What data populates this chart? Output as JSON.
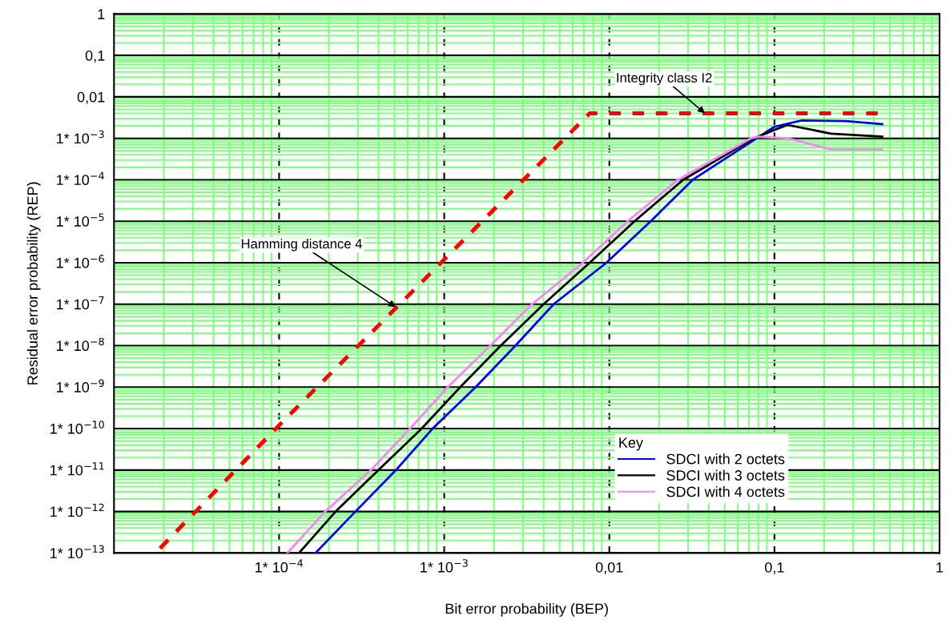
{
  "chart_data": {
    "type": "line",
    "xlabel": "Bit error probability (BEP)",
    "ylabel": "Residual error probability (REP)",
    "legend_title": "Key",
    "legend": "bottom right",
    "log": "xy",
    "grid": true,
    "xlim": [
      1e-05,
      1
    ],
    "ylim": [
      1e-13,
      1
    ],
    "xticks": [
      {
        "value": 2e-05,
        "label": null
      },
      {
        "value": 3e-05,
        "label": null
      },
      {
        "value": 4e-05,
        "label": null
      },
      {
        "value": 5e-05,
        "label": null
      },
      {
        "value": 6e-05,
        "label": null
      },
      {
        "value": 7e-05,
        "label": null
      },
      {
        "value": 8e-05,
        "label": null
      },
      {
        "value": 9e-05,
        "label": null
      },
      {
        "value": 0.0002,
        "label": null
      },
      {
        "value": 0.0003,
        "label": null
      },
      {
        "value": 0.0004,
        "label": null
      },
      {
        "value": 0.0005,
        "label": null
      },
      {
        "value": 0.0006,
        "label": null
      },
      {
        "value": 0.0007,
        "label": null
      },
      {
        "value": 0.0008,
        "label": null
      },
      {
        "value": 0.0009,
        "label": null
      },
      {
        "value": 0.002,
        "label": null
      },
      {
        "value": 0.003,
        "label": null
      },
      {
        "value": 0.004,
        "label": null
      },
      {
        "value": 0.005,
        "label": null
      },
      {
        "value": 0.006,
        "label": null
      },
      {
        "value": 0.007,
        "label": null
      },
      {
        "value": 0.008,
        "label": null
      },
      {
        "value": 0.009,
        "label": null
      },
      {
        "value": 0.02,
        "label": null
      },
      {
        "value": 0.03,
        "label": null
      },
      {
        "value": 0.04,
        "label": null
      },
      {
        "value": 0.05,
        "label": null
      },
      {
        "value": 0.06,
        "label": null
      },
      {
        "value": 0.07,
        "label": null
      },
      {
        "value": 0.08,
        "label": null
      },
      {
        "value": 0.09,
        "label": null
      },
      {
        "value": 0.2,
        "label": null
      },
      {
        "value": 0.3,
        "label": null
      },
      {
        "value": 0.4,
        "label": null
      },
      {
        "value": 0.5,
        "label": null
      },
      {
        "value": 0.6,
        "label": null
      },
      {
        "value": 0.7,
        "label": null
      },
      {
        "value": 0.8,
        "label": null
      },
      {
        "value": 0.9,
        "label": null
      },
      {
        "value": 0.0001,
        "label": "1* 10$^{−4}$"
      },
      {
        "value": 0.001,
        "label": "1* 10$^{−3}$"
      },
      {
        "value": 0.01,
        "label": "0,01"
      },
      {
        "value": 0.1,
        "label": "0,1"
      },
      {
        "value": 1,
        "label": "1"
      }
    ],
    "yticks": [
      {
        "value": 1,
        "label": "1"
      },
      {
        "value": 0.1,
        "label": "0,1"
      },
      {
        "value": 0.01,
        "label": "0,01"
      },
      {
        "value": 0.001,
        "label": "1* 10$^{−3}$"
      },
      {
        "value": 0.0001,
        "label": "1* 10$^{−4}$"
      },
      {
        "value": 1e-05,
        "label": "1* 10$^{−5}$"
      },
      {
        "value": 1e-06,
        "label": "1* 10$^{−6}$"
      },
      {
        "value": 1e-07,
        "label": "1* 10$^{−7}$"
      },
      {
        "value": 1e-08,
        "label": "1* 10$^{−8}$"
      },
      {
        "value": 1e-09,
        "label": "1* 10$^{−9}$"
      },
      {
        "value": 1e-10,
        "label": "1* 10$^{−10}$"
      },
      {
        "value": 1e-11,
        "label": "1* 10$^{−11}$"
      },
      {
        "value": 1e-12,
        "label": "1* 10$^{−12}$"
      },
      {
        "value": 1e-13,
        "label": "1* 10$^{−13}$"
      },
      {
        "value": 2e-13,
        "label": null
      },
      {
        "value": 3e-13,
        "label": null
      },
      {
        "value": 4e-13,
        "label": null
      },
      {
        "value": 5e-13,
        "label": null
      },
      {
        "value": 6e-13,
        "label": null
      },
      {
        "value": 7e-13,
        "label": null
      },
      {
        "value": 8e-13,
        "label": null
      },
      {
        "value": 9e-13,
        "label": null
      },
      {
        "value": 2e-12,
        "label": null
      },
      {
        "value": 3e-12,
        "label": null
      },
      {
        "value": 4e-12,
        "label": null
      },
      {
        "value": 5e-12,
        "label": null
      },
      {
        "value": 6e-12,
        "label": null
      },
      {
        "value": 7e-12,
        "label": null
      },
      {
        "value": 8e-12,
        "label": null
      },
      {
        "value": 9e-12,
        "label": null
      },
      {
        "value": 2e-11,
        "label": null
      },
      {
        "value": 3e-11,
        "label": null
      },
      {
        "value": 4e-11,
        "label": null
      },
      {
        "value": 5e-11,
        "label": null
      },
      {
        "value": 6e-11,
        "label": null
      },
      {
        "value": 7e-11,
        "label": null
      },
      {
        "value": 8e-11,
        "label": null
      },
      {
        "value": 9e-11,
        "label": null
      },
      {
        "value": 2e-10,
        "label": null
      },
      {
        "value": 3e-10,
        "label": null
      },
      {
        "value": 4e-10,
        "label": null
      },
      {
        "value": 5e-10,
        "label": null
      },
      {
        "value": 6e-10,
        "label": null
      },
      {
        "value": 7e-10,
        "label": null
      },
      {
        "value": 8e-10,
        "label": null
      },
      {
        "value": 9e-10,
        "label": null
      },
      {
        "value": 2e-09,
        "label": null
      },
      {
        "value": 3e-09,
        "label": null
      },
      {
        "value": 4e-09,
        "label": null
      },
      {
        "value": 5e-09,
        "label": null
      },
      {
        "value": 6e-09,
        "label": null
      },
      {
        "value": 7e-09,
        "label": null
      },
      {
        "value": 8e-09,
        "label": null
      },
      {
        "value": 9e-09,
        "label": null
      },
      {
        "value": 2e-08,
        "label": null
      },
      {
        "value": 3e-08,
        "label": null
      },
      {
        "value": 4e-08,
        "label": null
      },
      {
        "value": 5e-08,
        "label": null
      },
      {
        "value": 6e-08,
        "label": null
      },
      {
        "value": 7e-08,
        "label": null
      },
      {
        "value": 8e-08,
        "label": null
      },
      {
        "value": 9e-08,
        "label": null
      },
      {
        "value": 2e-07,
        "label": null
      },
      {
        "value": 3e-07,
        "label": null
      },
      {
        "value": 4e-07,
        "label": null
      },
      {
        "value": 5e-07,
        "label": null
      },
      {
        "value": 6e-07,
        "label": null
      },
      {
        "value": 7e-07,
        "label": null
      },
      {
        "value": 8e-07,
        "label": null
      },
      {
        "value": 9e-07,
        "label": null
      },
      {
        "value": 2e-06,
        "label": null
      },
      {
        "value": 3e-06,
        "label": null
      },
      {
        "value": 4e-06,
        "label": null
      },
      {
        "value": 5e-06,
        "label": null
      },
      {
        "value": 6e-06,
        "label": null
      },
      {
        "value": 7e-06,
        "label": null
      },
      {
        "value": 8e-06,
        "label": null
      },
      {
        "value": 9e-06,
        "label": null
      },
      {
        "value": 2e-05,
        "label": null
      },
      {
        "value": 3e-05,
        "label": null
      },
      {
        "value": 4e-05,
        "label": null
      },
      {
        "value": 5e-05,
        "label": null
      },
      {
        "value": 6e-05,
        "label": null
      },
      {
        "value": 7e-05,
        "label": null
      },
      {
        "value": 8e-05,
        "label": null
      },
      {
        "value": 9e-05,
        "label": null
      },
      {
        "value": 0.0002,
        "label": null
      },
      {
        "value": 0.0003,
        "label": null
      },
      {
        "value": 0.0004,
        "label": null
      },
      {
        "value": 0.0005,
        "label": null
      },
      {
        "value": 0.0006,
        "label": null
      },
      {
        "value": 0.0007,
        "label": null
      },
      {
        "value": 0.0008,
        "label": null
      },
      {
        "value": 0.0009,
        "label": null
      },
      {
        "value": 0.002,
        "label": null
      },
      {
        "value": 0.003,
        "label": null
      },
      {
        "value": 0.004,
        "label": null
      },
      {
        "value": 0.005,
        "label": null
      },
      {
        "value": 0.006,
        "label": null
      },
      {
        "value": 0.007,
        "label": null
      },
      {
        "value": 0.008,
        "label": null
      },
      {
        "value": 0.009,
        "label": null
      },
      {
        "value": 0.02,
        "label": null
      },
      {
        "value": 0.03,
        "label": null
      },
      {
        "value": 0.04,
        "label": null
      },
      {
        "value": 0.05,
        "label": null
      },
      {
        "value": 0.06,
        "label": null
      },
      {
        "value": 0.07,
        "label": null
      },
      {
        "value": 0.08,
        "label": null
      },
      {
        "value": 0.09,
        "label": null
      },
      {
        "value": 0.2,
        "label": null
      },
      {
        "value": 0.3,
        "label": null
      },
      {
        "value": 0.4,
        "label": null
      },
      {
        "value": 0.5,
        "label": null
      },
      {
        "value": 0.6,
        "label": null
      },
      {
        "value": 0.7,
        "label": null
      },
      {
        "value": 0.8,
        "label": null
      },
      {
        "value": 0.9,
        "label": null
      }
    ],
    "series": [
      {
        "color": "#ff0000",
        "line_style": "dashed",
        "x": [
          1.9e-05,
          0.0001,
          0.001,
          0.0076,
          0.43
        ],
        "values": [
          1.3e-13,
          1.2e-10,
          1.2e-06,
          0.004,
          0.004
        ]
      },
      {
        "name": "SDCI with 2 octets",
        "color": "#0000ff",
        "line_style": "solid",
        "x": [
          0.000166,
          0.00029,
          0.00051,
          0.00085,
          0.00155,
          0.0027,
          0.0046,
          0.0096,
          0.0178,
          0.032,
          0.078,
          0.1,
          0.146,
          0.27,
          0.45
        ],
        "values": [
          1e-13,
          1e-12,
          1e-11,
          1e-10,
          1e-09,
          1e-08,
          1e-07,
          1e-06,
          1e-05,
          0.0001,
          0.001,
          0.0019,
          0.0027,
          0.0026,
          0.0022
        ]
      },
      {
        "name": "SDCI with 3 octets",
        "color": "#000000",
        "line_style": "solid",
        "x": [
          0.000132,
          0.00022,
          0.0004,
          0.00073,
          0.00125,
          0.0022,
          0.004,
          0.0076,
          0.0142,
          0.028,
          0.075,
          0.1,
          0.12,
          0.22,
          0.45
        ],
        "values": [
          1e-13,
          1e-12,
          1e-11,
          1e-10,
          1e-09,
          1e-08,
          1e-07,
          1e-06,
          1e-05,
          0.0001,
          0.001,
          0.0016,
          0.0021,
          0.0013,
          0.0011
        ]
      },
      {
        "name": "SDCI with 4 octets",
        "color": "#ff80ff",
        "line_style": "solid",
        "x": [
          0.000112,
          0.00019,
          0.00036,
          0.00062,
          0.00105,
          0.0019,
          0.0034,
          0.0069,
          0.0129,
          0.026,
          0.072,
          0.08,
          0.12,
          0.22,
          0.45
        ],
        "values": [
          1e-13,
          1e-12,
          1e-11,
          1e-10,
          1e-09,
          1e-08,
          1e-07,
          1e-06,
          1e-05,
          0.0001,
          0.001,
          0.0011,
          0.001,
          0.00054,
          0.00054
        ]
      }
    ],
    "annotations": [
      {
        "text": "Hamming distance 4",
        "x": 0.00051,
        "y": 8.5e-08
      },
      {
        "text": "Integrity class I2",
        "x": 0.038,
        "y": 0.004
      }
    ]
  }
}
